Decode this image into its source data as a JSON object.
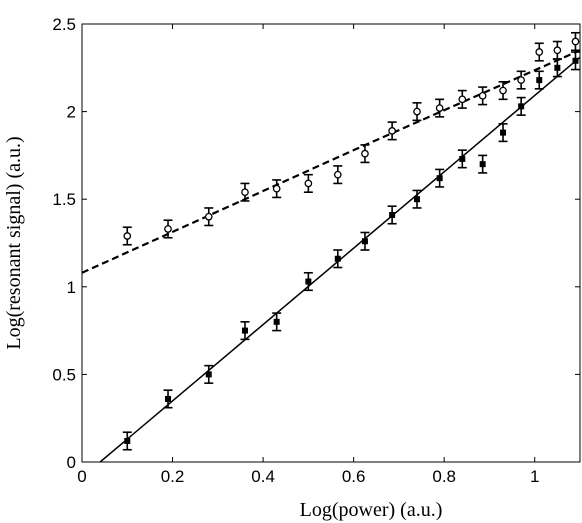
{
  "chart_data": {
    "type": "scatter",
    "xlabel": "Log(power) (a.u.)",
    "ylabel": "Log(resonant signal) (a.u.)",
    "xlim": [
      0,
      1.1
    ],
    "ylim": [
      0,
      2.5
    ],
    "x_ticks": [
      "0",
      "0.2",
      "0.4",
      "0.6",
      "0.8",
      "1"
    ],
    "y_ticks": [
      "0",
      "0.5",
      "1",
      "1.5",
      "2",
      "2.5"
    ],
    "grid": false,
    "series": [
      {
        "marker": "open-circle",
        "points": [
          {
            "x": 0.1,
            "y": 1.29,
            "err": 0.05
          },
          {
            "x": 0.19,
            "y": 1.33,
            "err": 0.05
          },
          {
            "x": 0.28,
            "y": 1.4,
            "err": 0.05
          },
          {
            "x": 0.36,
            "y": 1.54,
            "err": 0.05
          },
          {
            "x": 0.43,
            "y": 1.56,
            "err": 0.05
          },
          {
            "x": 0.5,
            "y": 1.59,
            "err": 0.05
          },
          {
            "x": 0.565,
            "y": 1.64,
            "err": 0.05
          },
          {
            "x": 0.625,
            "y": 1.76,
            "err": 0.05
          },
          {
            "x": 0.685,
            "y": 1.89,
            "err": 0.05
          },
          {
            "x": 0.74,
            "y": 2.0,
            "err": 0.05
          },
          {
            "x": 0.79,
            "y": 2.02,
            "err": 0.05
          },
          {
            "x": 0.84,
            "y": 2.07,
            "err": 0.05
          },
          {
            "x": 0.885,
            "y": 2.09,
            "err": 0.05
          },
          {
            "x": 0.93,
            "y": 2.12,
            "err": 0.05
          },
          {
            "x": 0.97,
            "y": 2.18,
            "err": 0.05
          },
          {
            "x": 1.01,
            "y": 2.34,
            "err": 0.05
          },
          {
            "x": 1.05,
            "y": 2.35,
            "err": 0.05
          },
          {
            "x": 1.09,
            "y": 2.4,
            "err": 0.05
          }
        ],
        "fit": {
          "style": "dashed",
          "segments": [
            [
              0,
              1.08
            ],
            [
              0.6,
              1.78
            ],
            [
              1.1,
              2.35
            ]
          ]
        }
      },
      {
        "marker": "filled-square",
        "points": [
          {
            "x": 0.1,
            "y": 0.12,
            "err": 0.05
          },
          {
            "x": 0.19,
            "y": 0.36,
            "err": 0.05
          },
          {
            "x": 0.28,
            "y": 0.5,
            "err": 0.05
          },
          {
            "x": 0.36,
            "y": 0.75,
            "err": 0.05
          },
          {
            "x": 0.43,
            "y": 0.8,
            "err": 0.05
          },
          {
            "x": 0.5,
            "y": 1.03,
            "err": 0.05
          },
          {
            "x": 0.565,
            "y": 1.16,
            "err": 0.05
          },
          {
            "x": 0.625,
            "y": 1.26,
            "err": 0.05
          },
          {
            "x": 0.685,
            "y": 1.41,
            "err": 0.05
          },
          {
            "x": 0.74,
            "y": 1.5,
            "err": 0.05
          },
          {
            "x": 0.79,
            "y": 1.62,
            "err": 0.05
          },
          {
            "x": 0.84,
            "y": 1.73,
            "err": 0.05
          },
          {
            "x": 0.885,
            "y": 1.7,
            "err": 0.05
          },
          {
            "x": 0.93,
            "y": 1.88,
            "err": 0.05
          },
          {
            "x": 0.97,
            "y": 2.03,
            "err": 0.05
          },
          {
            "x": 1.01,
            "y": 2.18,
            "err": 0.05
          },
          {
            "x": 1.05,
            "y": 2.25,
            "err": 0.05
          },
          {
            "x": 1.09,
            "y": 2.29,
            "err": 0.05
          }
        ],
        "fit": {
          "style": "solid",
          "segments": [
            [
              0.04,
              0.0
            ],
            [
              1.1,
              2.31
            ]
          ]
        }
      }
    ]
  }
}
